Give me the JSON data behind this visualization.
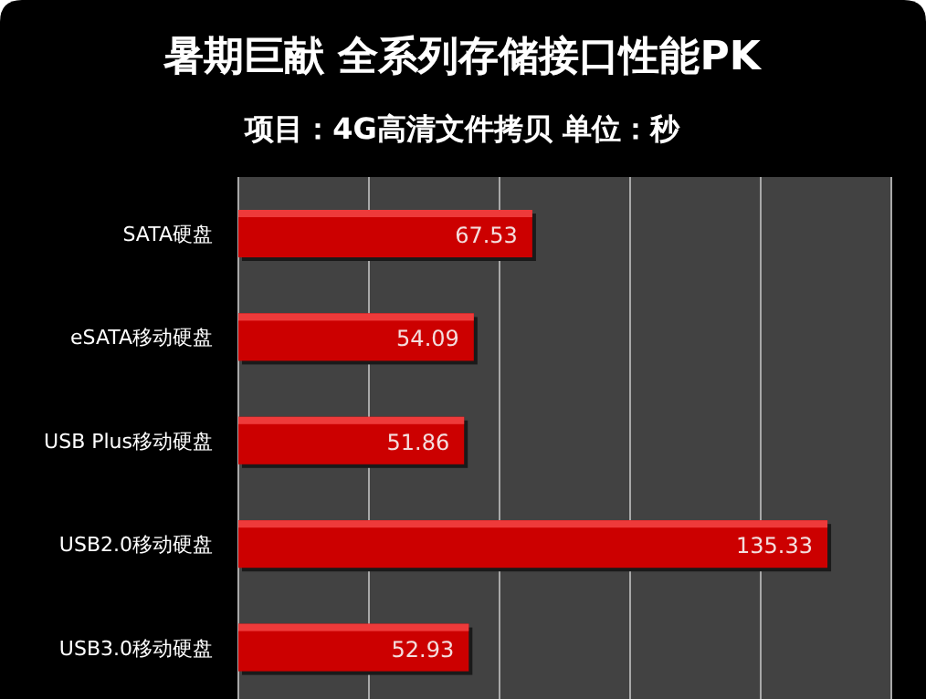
{
  "chart_data": {
    "type": "bar",
    "orientation": "horizontal",
    "title": "暑期巨献  全系列存储接口性能PK",
    "subtitle": "项目：4G高清文件拷贝  单位：秒",
    "categories": [
      "SATA硬盘",
      "eSATA移动硬盘",
      "USB Plus移动硬盘",
      "USB2.0移动硬盘",
      "USB3.0移动硬盘"
    ],
    "values": [
      67.53,
      54.09,
      51.86,
      135.33,
      52.93
    ],
    "color": "#cc0000",
    "xlim": [
      0,
      150
    ],
    "xticks": [
      {
        "value": 0,
        "label": null
      },
      {
        "value": 30,
        "label": null
      },
      {
        "value": 60,
        "label": null
      },
      {
        "value": 90,
        "label": null
      },
      {
        "value": 120,
        "label": null
      },
      {
        "value": 150,
        "label": null
      }
    ],
    "grid": "x",
    "data_labels": true,
    "tick_labels": "y"
  }
}
